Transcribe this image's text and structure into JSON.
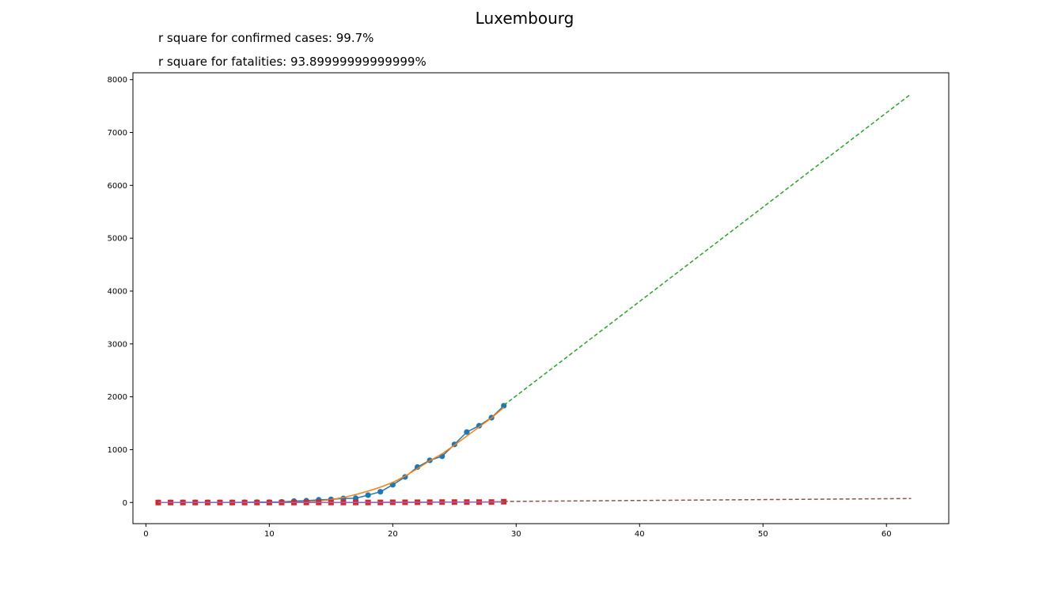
{
  "chart_data": {
    "type": "line",
    "title": "Luxembourg",
    "annotations": [
      "r square for confirmed cases: 99.7%",
      "r square for fatalities: 93.89999999999999%"
    ],
    "xlabel": "",
    "ylabel": "",
    "xlim": [
      -1.05,
      65.05
    ],
    "ylim": [
      -400,
      8130
    ],
    "x_ticks": [
      0,
      10,
      20,
      30,
      40,
      50,
      60
    ],
    "y_ticks": [
      0,
      1000,
      2000,
      3000,
      4000,
      5000,
      6000,
      7000,
      8000
    ],
    "grid": false,
    "legend": "none",
    "series": [
      {
        "role": "confirmed",
        "style": "line-circle",
        "color": "#1f77b4",
        "x": [
          1,
          2,
          3,
          4,
          5,
          6,
          7,
          8,
          9,
          10,
          11,
          12,
          13,
          14,
          15,
          16,
          17,
          18,
          19,
          20,
          21,
          22,
          23,
          24,
          25,
          26,
          27,
          28,
          29
        ],
        "y": [
          1,
          1,
          2,
          2,
          3,
          3,
          3,
          5,
          7,
          7,
          12,
          26,
          34,
          51,
          59,
          77,
          81,
          140,
          203,
          335,
          484,
          670,
          798,
          875,
          1099,
          1333,
          1453,
          1605,
          1831
        ]
      },
      {
        "role": "confirmed-fit",
        "style": "line",
        "color": "#ff7f0e",
        "x": [
          1,
          5,
          9,
          11,
          13,
          14,
          15,
          16,
          17,
          18,
          19,
          20,
          21,
          22,
          23,
          24,
          25,
          26,
          27,
          28,
          29
        ],
        "y": [
          0,
          0,
          0,
          3,
          12,
          28,
          55,
          95,
          150,
          215,
          290,
          380,
          500,
          640,
          790,
          920,
          1085,
          1255,
          1430,
          1600,
          1800
        ]
      },
      {
        "role": "confirmed-projection",
        "style": "dashed",
        "color": "#2ca02c",
        "x": [
          29,
          62
        ],
        "y": [
          1840,
          7730
        ]
      },
      {
        "role": "fatalities",
        "style": "line-square",
        "color": "#d62728",
        "x": [
          1,
          2,
          3,
          4,
          5,
          6,
          7,
          8,
          9,
          10,
          11,
          12,
          13,
          14,
          15,
          16,
          17,
          18,
          19,
          20,
          21,
          22,
          23,
          24,
          25,
          26,
          27,
          28,
          29
        ],
        "y": [
          0,
          0,
          0,
          0,
          0,
          0,
          0,
          0,
          0,
          0,
          0,
          0,
          1,
          1,
          1,
          1,
          1,
          1,
          2,
          4,
          4,
          5,
          6,
          8,
          8,
          8,
          8,
          9,
          15
        ]
      },
      {
        "role": "fatalities-fit",
        "style": "line",
        "color": "#9467bd",
        "x": [
          1,
          10,
          15,
          20,
          25,
          29
        ],
        "y": [
          0,
          0,
          1,
          3,
          7,
          12
        ]
      },
      {
        "role": "fatalities-projection",
        "style": "dashed",
        "color": "#8c564b",
        "x": [
          29,
          62
        ],
        "y": [
          20,
          75
        ]
      }
    ]
  }
}
